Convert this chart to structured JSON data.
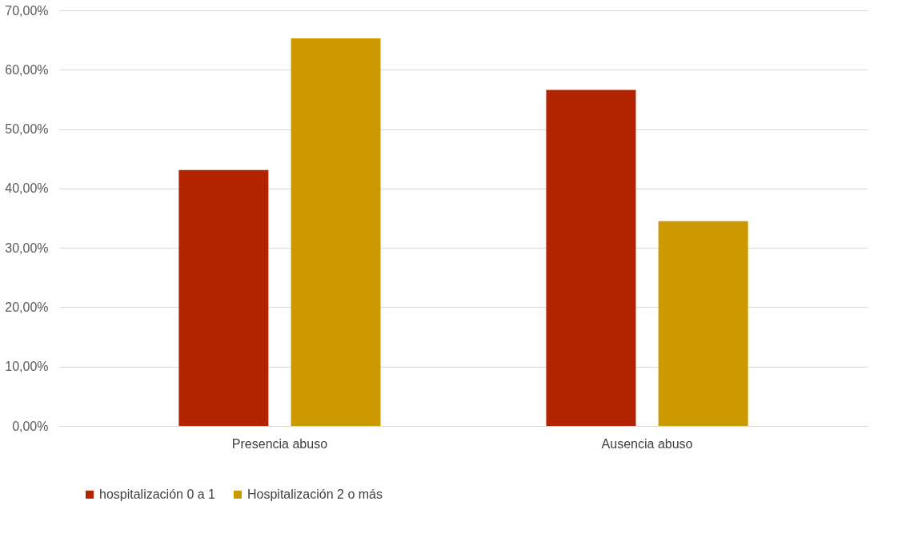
{
  "chart_data": {
    "type": "bar",
    "categories": [
      "Presencia abuso",
      "Ausencia abuso"
    ],
    "series": [
      {
        "name": "hospitalización 0 a 1",
        "color": "#b22400",
        "values": [
          43.1,
          56.6
        ]
      },
      {
        "name": "Hospitalización 2 o más",
        "color": "#cc9900",
        "values": [
          65.3,
          34.5
        ]
      }
    ],
    "ylim": [
      0,
      70
    ],
    "yticks": [
      {
        "value": 0,
        "label": "0,00%"
      },
      {
        "value": 10,
        "label": "10,00%"
      },
      {
        "value": 20,
        "label": "20,00%"
      },
      {
        "value": 30,
        "label": "30,00%"
      },
      {
        "value": 40,
        "label": "40,00%"
      },
      {
        "value": 50,
        "label": "50,00%"
      },
      {
        "value": 60,
        "label": "60,00%"
      },
      {
        "value": 70,
        "label": "70,00%"
      }
    ],
    "grid": "y",
    "legend": "bottom"
  }
}
